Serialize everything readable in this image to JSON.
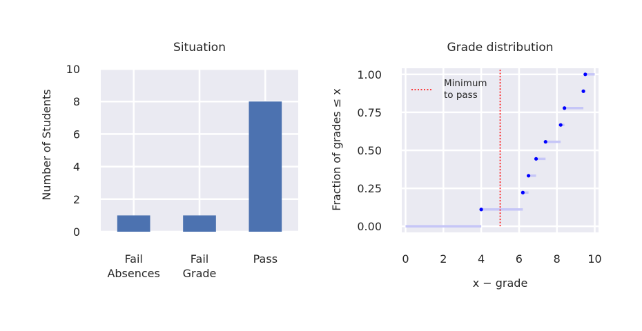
{
  "colors": {
    "panel_bg": "#eaeaf2",
    "grid": "#ffffff",
    "bar": "#4c72b0",
    "point": "#0000ff",
    "step": "#c6c6f7",
    "threshold": "#ff0000"
  },
  "chart_data": [
    {
      "type": "bar",
      "title": "Situation",
      "xlabel": "",
      "ylabel": "Number of Students",
      "categories": [
        "Fail\nAbsences",
        "Fail\nGrade",
        "Pass"
      ],
      "values": [
        1,
        1,
        8
      ],
      "ylim": [
        0,
        10
      ],
      "yticks": [
        0,
        2,
        4,
        6,
        8,
        10
      ],
      "ytick_labels": [
        "0",
        "2",
        "4",
        "6",
        "8",
        "10"
      ],
      "grid": true
    },
    {
      "type": "line",
      "subtype": "empirical-cdf-step",
      "title": "Grade distribution",
      "xlabel": "x − grade",
      "ylabel": "Fraction of grades ≤ x",
      "xlim": [
        -0.2,
        10.2
      ],
      "ylim": [
        -0.04,
        1.04
      ],
      "xticks": [
        0,
        2,
        4,
        6,
        8,
        10
      ],
      "xtick_labels": [
        "0",
        "2",
        "4",
        "6",
        "8",
        "10"
      ],
      "yticks": [
        0.0,
        0.25,
        0.5,
        0.75,
        1.0
      ],
      "ytick_labels": [
        "0.00",
        "0.25",
        "0.50",
        "0.75",
        "1.00"
      ],
      "grid": true,
      "points": [
        {
          "x": 4.0,
          "y": 0.111
        },
        {
          "x": 6.2,
          "y": 0.222
        },
        {
          "x": 6.5,
          "y": 0.333
        },
        {
          "x": 6.9,
          "y": 0.444
        },
        {
          "x": 7.4,
          "y": 0.556
        },
        {
          "x": 8.2,
          "y": 0.667
        },
        {
          "x": 8.4,
          "y": 0.778
        },
        {
          "x": 9.4,
          "y": 0.889
        },
        {
          "x": 9.5,
          "y": 1.0
        }
      ],
      "steps": [
        {
          "x0": 0.0,
          "x1": 4.0,
          "y": 0.0
        },
        {
          "x0": 4.0,
          "x1": 6.2,
          "y": 0.111
        },
        {
          "x0": 6.2,
          "x1": 6.5,
          "y": 0.222
        },
        {
          "x0": 6.5,
          "x1": 6.9,
          "y": 0.333
        },
        {
          "x0": 6.9,
          "x1": 7.4,
          "y": 0.444
        },
        {
          "x0": 7.4,
          "x1": 8.2,
          "y": 0.556
        },
        {
          "x0": 8.2,
          "x1": 8.4,
          "y": 0.667
        },
        {
          "x0": 8.4,
          "x1": 9.4,
          "y": 0.778
        },
        {
          "x0": 9.4,
          "x1": 9.5,
          "y": 0.889
        },
        {
          "x0": 9.5,
          "x1": 10.0,
          "y": 1.0
        }
      ],
      "threshold": {
        "x": 5.0,
        "label": "Minimum\nto pass"
      },
      "legend_position": "top-left"
    }
  ]
}
